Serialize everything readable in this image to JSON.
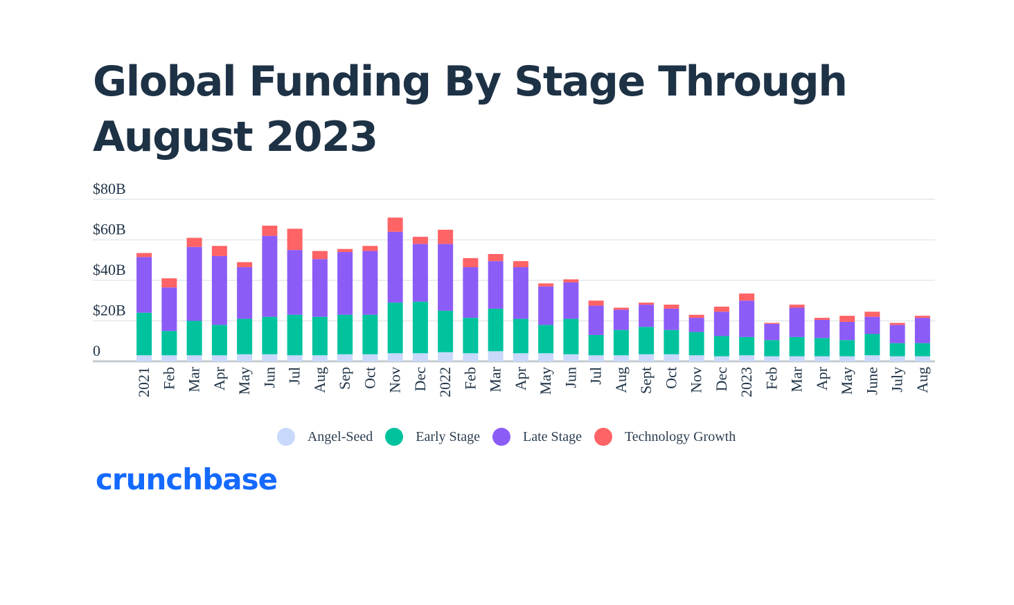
{
  "title": "Global Funding By Stage Through August 2023",
  "logo": "crunchbase",
  "colors": {
    "angel_seed": "#c8d9fb",
    "early_stage": "#00c39e",
    "late_stage": "#8c5cf7",
    "technology_growth": "#fe6366",
    "grid": "#e4e7ea",
    "axis": "#c4cacf",
    "text": "#1e3246",
    "logo": "#146aff"
  },
  "chart_data": {
    "type": "bar",
    "stacked": true,
    "ylim": [
      0,
      80
    ],
    "yticks": [
      0,
      20,
      40,
      60,
      80
    ],
    "ytick_labels": [
      "0",
      "$20B",
      "$40B",
      "$60B",
      "$80B"
    ],
    "grid": true,
    "legend_position": "bottom-center",
    "categories": [
      "2021",
      "Feb",
      "Mar",
      "Apr",
      "May",
      "Jun",
      "Jul",
      "Aug",
      "Sep",
      "Oct",
      "Nov",
      "Dec",
      "2022",
      "Feb",
      "Mar",
      "Apr",
      "May",
      "Jun",
      "Jul",
      "Aug",
      "Sept",
      "Oct",
      "Nov",
      "Dec",
      "2023",
      "Feb",
      "Mar",
      "Apr",
      "May",
      "June",
      "July",
      "Aug"
    ],
    "series": [
      {
        "name": "Angel-Seed",
        "color": "#c8d9fb",
        "values": [
          3,
          3,
          3,
          3,
          3.5,
          3.5,
          3,
          3,
          3.5,
          3.5,
          4,
          4,
          4.5,
          4,
          5,
          4,
          4,
          3.5,
          3,
          3,
          3.5,
          3.5,
          3,
          2.5,
          3,
          2.5,
          2.5,
          2.5,
          2.5,
          3,
          2.5,
          2.5
        ]
      },
      {
        "name": "Early Stage",
        "color": "#00c39e",
        "values": [
          21,
          12,
          17,
          15,
          17.5,
          18.5,
          20,
          19,
          19.5,
          19.5,
          25,
          25.5,
          20.5,
          17.5,
          21,
          17,
          14,
          17.5,
          10,
          12.5,
          13.5,
          12,
          11.5,
          10,
          9,
          8,
          9.5,
          9,
          8,
          10.5,
          6.5,
          6.5
        ]
      },
      {
        "name": "Late Stage",
        "color": "#8c5cf7",
        "values": [
          27.5,
          21.5,
          36.5,
          34,
          25.5,
          40,
          32,
          28.5,
          31,
          31.5,
          35,
          28.5,
          33,
          25,
          23.5,
          25.5,
          19,
          18,
          14.5,
          10,
          11,
          10.5,
          7,
          12,
          18,
          8,
          14.5,
          9,
          9,
          8.5,
          9,
          12.5
        ]
      },
      {
        "name": "Technology Growth",
        "color": "#fe6366",
        "values": [
          2,
          4.5,
          4.5,
          5,
          2.5,
          5,
          10.5,
          4,
          1.5,
          2.5,
          7,
          3.5,
          7,
          4.5,
          3.5,
          3,
          1.5,
          1.5,
          2.5,
          1,
          1,
          2,
          1.5,
          2.5,
          3.5,
          0.5,
          1.5,
          1,
          3,
          2.5,
          1,
          1
        ]
      }
    ]
  }
}
